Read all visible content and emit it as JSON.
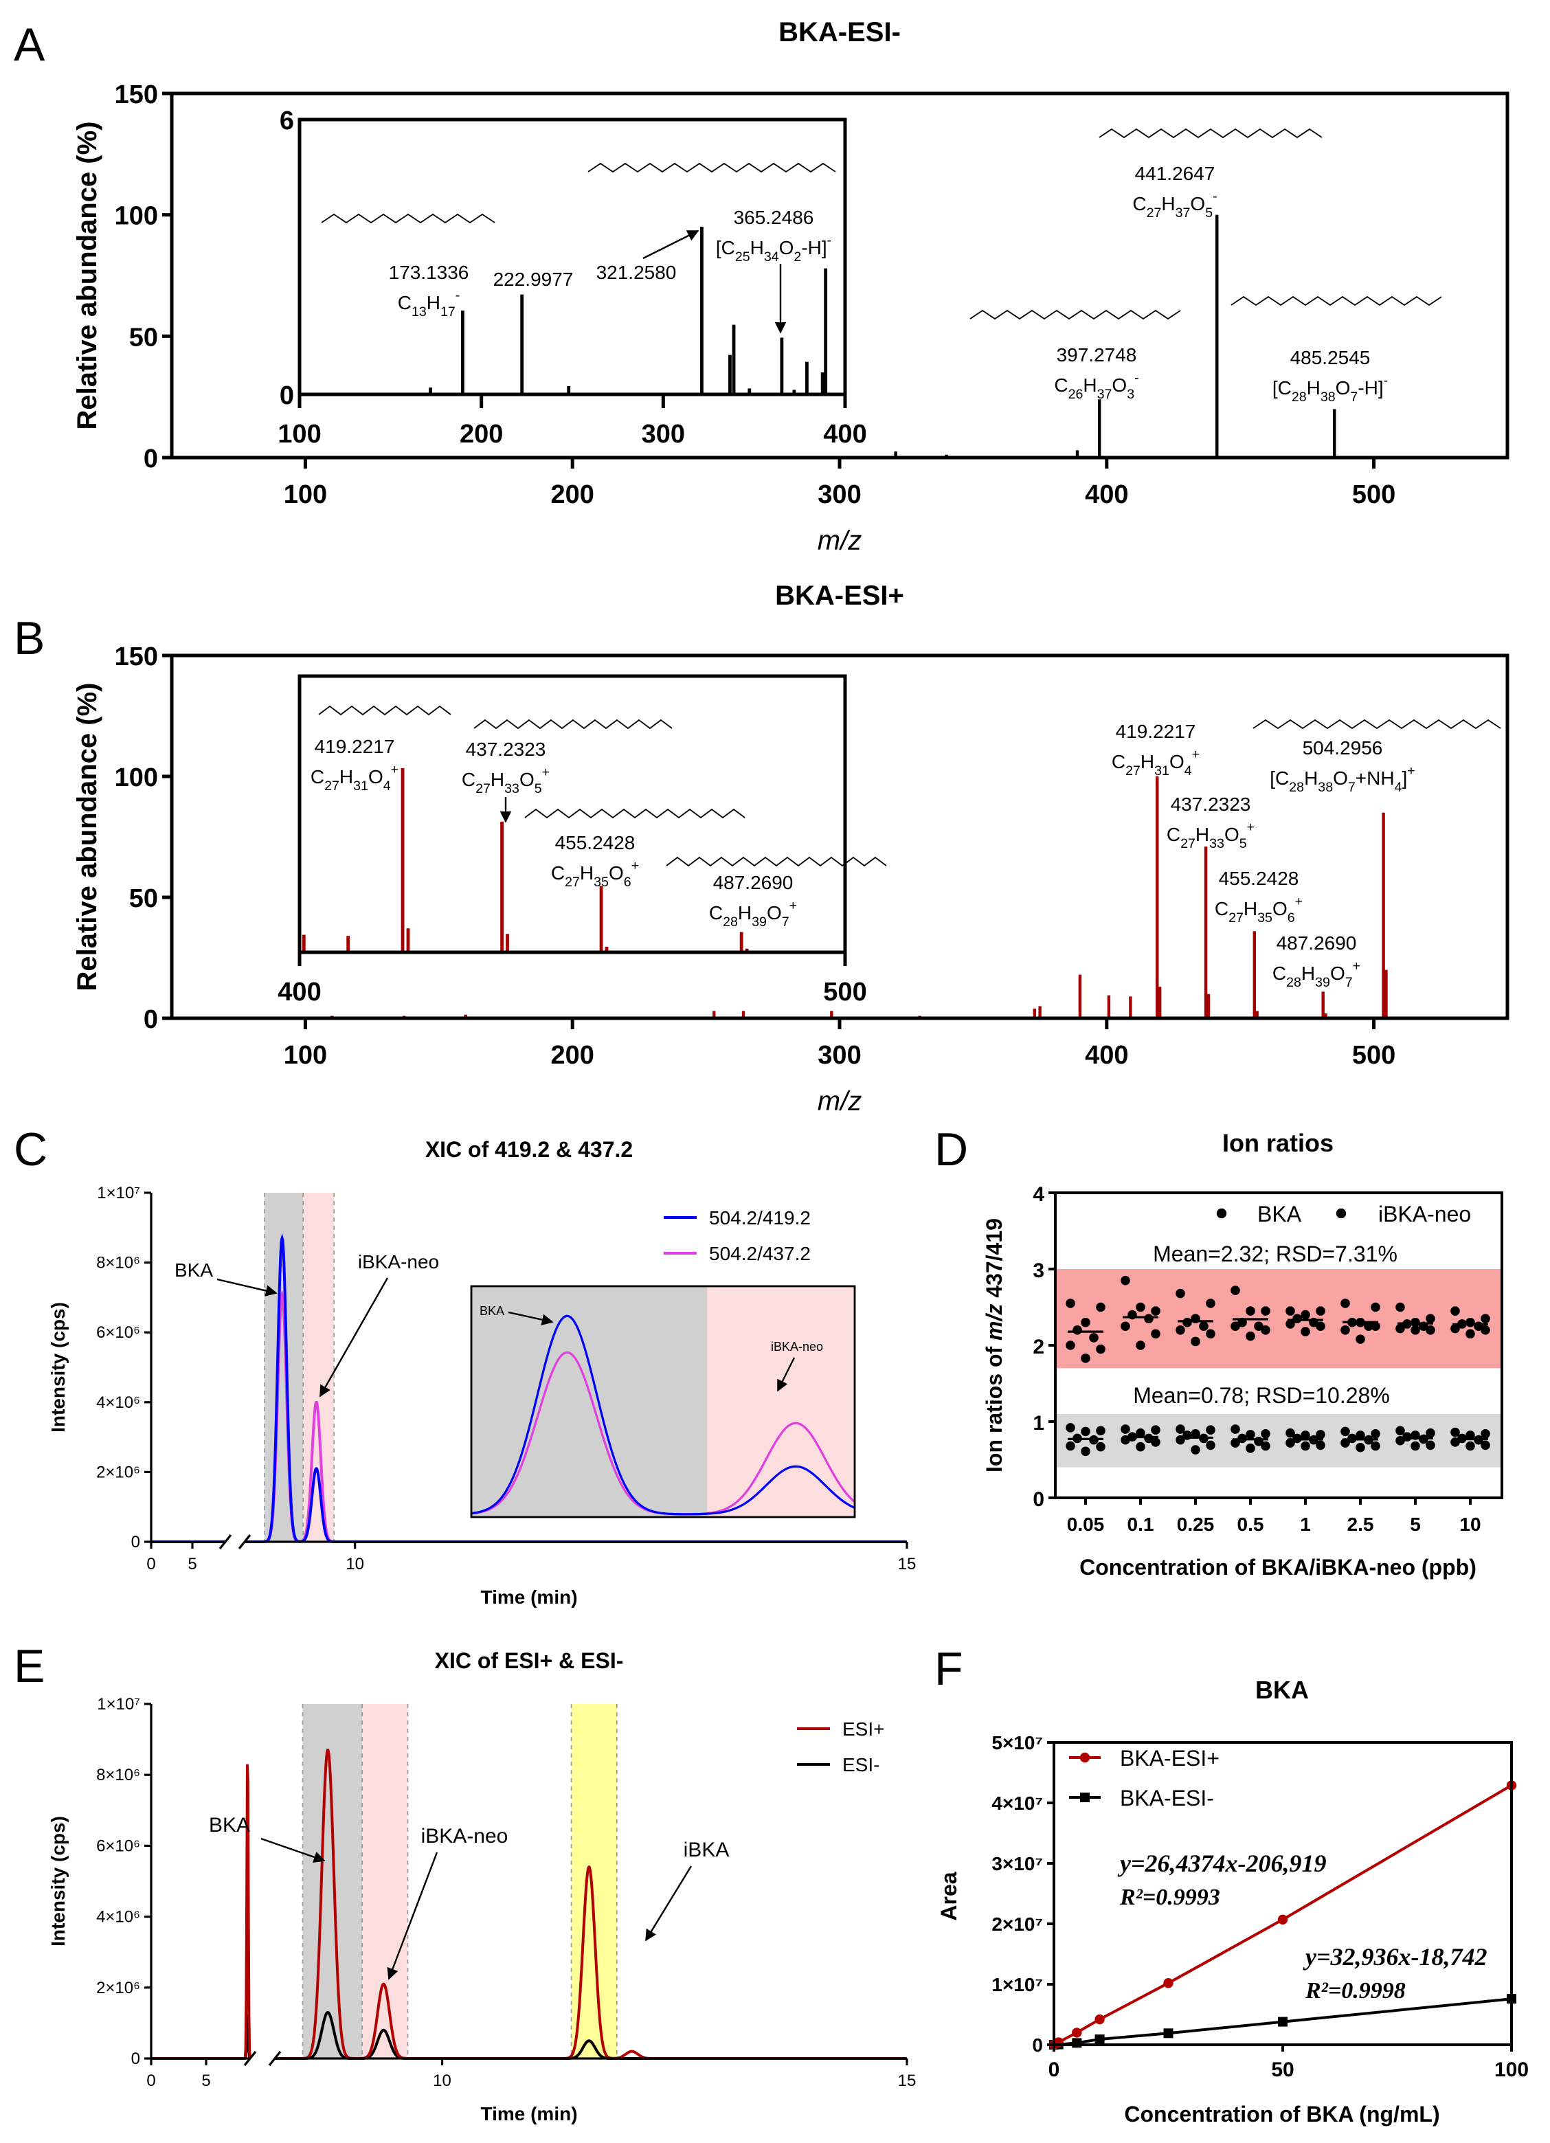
{
  "figure": {
    "panel_labels": [
      "A",
      "B",
      "C",
      "D",
      "E",
      "F"
    ]
  },
  "chart_data": [
    {
      "panel": "A",
      "type": "bar",
      "title": "BKA-ESI-",
      "xlabel": "m/z",
      "ylabel": "Relative abundance (%)",
      "xlim": [
        50,
        550
      ],
      "ylim": [
        0,
        150
      ],
      "xticks": [
        100,
        200,
        300,
        400,
        500
      ],
      "xtick_labels": [
        "100",
        "200",
        "300",
        "400",
        "500"
      ],
      "yticks": [
        0,
        50,
        100,
        150
      ],
      "ytick_labels": [
        "0",
        "50",
        "100",
        "150"
      ],
      "color": "#000000",
      "peaks": [
        [
          100,
          0.4
        ],
        [
          190,
          0.3
        ],
        [
          230,
          0.3
        ],
        [
          321,
          2.5
        ],
        [
          340,
          1.2
        ],
        [
          389,
          3
        ],
        [
          397.27,
          24
        ],
        [
          441.26,
          100
        ],
        [
          485.25,
          20
        ]
      ],
      "annotations": [
        {
          "mz": "441.2647",
          "formula": "C27H37O5-"
        },
        {
          "mz": "397.2748",
          "formula": "C26H37O3-"
        },
        {
          "mz": "485.2545",
          "formula": "[C28H38O7-H]-"
        }
      ],
      "inset": {
        "xlim": [
          100,
          400
        ],
        "ylim": [
          0,
          6
        ],
        "xticks": [
          100,
          200,
          300,
          400
        ],
        "xtick_labels": [
          "100",
          "200",
          "300",
          "400"
        ],
        "yticks": [
          0,
          6
        ],
        "ytick_labels": [
          "0",
          "6"
        ],
        "peaks": [
          [
            172,
            0.15
          ],
          [
            189.7,
            1.83
          ],
          [
            222.3,
            2.18
          ],
          [
            248,
            0.18
          ],
          [
            321.2,
            3.66
          ],
          [
            336.7,
            0.86
          ],
          [
            338.8,
            1.52
          ],
          [
            347.4,
            0.13
          ],
          [
            365.2,
            1.24
          ],
          [
            372,
            0.1
          ],
          [
            379,
            0.71
          ],
          [
            387.6,
            0.48
          ],
          [
            389.3,
            2.75
          ]
        ],
        "annotations": [
          {
            "mz": "173.1336",
            "formula": "C13H17-"
          },
          {
            "mz": "222.9977",
            "formula": ""
          },
          {
            "mz": "321.2580",
            "formula": ""
          },
          {
            "mz": "365.2486",
            "formula": "[C25H34O2-H]-"
          }
        ]
      }
    },
    {
      "panel": "B",
      "type": "bar",
      "title": "BKA-ESI+",
      "xlabel": "m/z",
      "ylabel": "Relative abundance (%)",
      "xlim": [
        50,
        550
      ],
      "ylim": [
        0,
        150
      ],
      "xticks": [
        100,
        200,
        300,
        400,
        500
      ],
      "xtick_labels": [
        "100",
        "200",
        "300",
        "400",
        "500"
      ],
      "yticks": [
        0,
        50,
        100,
        150
      ],
      "ytick_labels": [
        "0",
        "50",
        "100",
        "150"
      ],
      "color": "#a50000",
      "peaks": [
        [
          110,
          1
        ],
        [
          137,
          1
        ],
        [
          160,
          1.5
        ],
        [
          253,
          3
        ],
        [
          264,
          3
        ],
        [
          297,
          3
        ],
        [
          330,
          1
        ],
        [
          373,
          4
        ],
        [
          375,
          5
        ],
        [
          390,
          18
        ],
        [
          400.8,
          9.5
        ],
        [
          408.9,
          9
        ],
        [
          418.9,
          100
        ],
        [
          419.9,
          13
        ],
        [
          437.1,
          71
        ],
        [
          438.1,
          10
        ],
        [
          455.3,
          36
        ],
        [
          456.3,
          3
        ],
        [
          481,
          11
        ],
        [
          482,
          2
        ],
        [
          503.6,
          85
        ],
        [
          504.6,
          20
        ]
      ],
      "annotations": [
        {
          "mz": "419.2217",
          "formula": "C27H31O4+"
        },
        {
          "mz": "437.2323",
          "formula": "C27H33O5+"
        },
        {
          "mz": "455.2428",
          "formula": "C27H35O6+"
        },
        {
          "mz": "487.2690",
          "formula": "C28H39O7+"
        },
        {
          "mz": "504.2956",
          "formula": "[C28H38O7+NH4]+"
        }
      ],
      "inset": {
        "xlim": [
          400,
          500
        ],
        "ylim": [
          0,
          150
        ],
        "xticks": [
          400,
          500
        ],
        "xtick_labels": [
          "400",
          "500"
        ],
        "yticks": [],
        "ytick_labels": [],
        "peaks": [
          [
            400.8,
            9.5
          ],
          [
            401.5,
            0.6
          ],
          [
            408.9,
            8.9
          ],
          [
            418.9,
            100
          ],
          [
            419.9,
            13
          ],
          [
            437.1,
            71
          ],
          [
            438.1,
            10
          ],
          [
            455.3,
            36
          ],
          [
            456.3,
            3
          ],
          [
            481,
            11
          ],
          [
            482,
            2
          ]
        ],
        "annotations": [
          {
            "mz": "419.2217",
            "formula": "C27H31O4+"
          },
          {
            "mz": "437.2323",
            "formula": "C27H33O5+"
          },
          {
            "mz": "455.2428",
            "formula": "C27H35O6+"
          },
          {
            "mz": "487.2690",
            "formula": "C28H39O7+"
          }
        ]
      }
    },
    {
      "panel": "C",
      "type": "line",
      "title": "XIC of 419.2 & 437.2",
      "xlabel": "Time (min)",
      "ylabel": "Intensity (cps)",
      "xlim": [
        0,
        15
      ],
      "ylim": [
        0,
        10000000
      ],
      "xticks": [
        0,
        5,
        10,
        15
      ],
      "xtick_labels": [
        "0",
        "5",
        "10",
        "15"
      ],
      "yticks": [
        0,
        2000000,
        4000000,
        6000000,
        8000000,
        10000000
      ],
      "ytick_labels": [
        "0",
        "2×10⁶",
        "4×10⁶",
        "6×10⁶",
        "8×10⁶",
        "1×10⁷"
      ],
      "peak_width_min": 0.04,
      "series": [
        {
          "name": "504.2/419.2",
          "color": "#0000ff",
          "peaks": [
            [
              9.34,
              8700000
            ],
            [
              9.65,
              2100000
            ]
          ]
        },
        {
          "name": "504.2/437.2",
          "color": "#e040e0",
          "peaks": [
            [
              9.34,
              7100000
            ],
            [
              9.65,
              4000000
            ]
          ]
        }
      ],
      "regions": [
        {
          "t": [
            9.18,
            9.53
          ],
          "color": "#d0d0d0"
        },
        {
          "t": [
            9.53,
            9.81
          ],
          "color": "#fddede"
        }
      ],
      "annotations": [
        "BKA",
        "iBKA-neo"
      ],
      "inset": {
        "xlim": [
          9.21,
          9.73
        ],
        "split": 9.53,
        "annotations": [
          "BKA",
          "iBKA-neo"
        ]
      }
    },
    {
      "panel": "D",
      "type": "scatter",
      "title": "Ion ratios",
      "xlabel": "Concentration of BKA/iBKA-neo (ppb)",
      "ylabel_prefix": "Ion ratios of ",
      "ylabel_italic": "m/z",
      "ylabel_suffix": " 437/419",
      "categories": [
        "0.05",
        "0.1",
        "0.25",
        "0.5",
        "1",
        "2.5",
        "5",
        "10"
      ],
      "ylim": [
        0,
        4
      ],
      "yticks": [
        0,
        1,
        2,
        3,
        4
      ],
      "ytick_labels": [
        "0",
        "1",
        "2",
        "3",
        "4"
      ],
      "series": [
        {
          "name": "BKA",
          "legend_color": "#000000",
          "band": [
            0.4,
            1.1
          ],
          "band_color": "#d9d9d9",
          "summary": "Mean=0.78; RSD=10.28%",
          "values": [
            [
              0.92,
              0.88,
              0.87,
              0.78,
              0.76,
              0.68,
              0.67,
              0.61
            ],
            [
              0.9,
              0.89,
              0.85,
              0.8,
              0.78,
              0.76,
              0.73,
              0.67
            ],
            [
              0.9,
              0.89,
              0.84,
              0.82,
              0.78,
              0.76,
              0.69,
              0.63
            ],
            [
              0.9,
              0.84,
              0.83,
              0.78,
              0.74,
              0.72,
              0.68,
              0.65
            ],
            [
              0.85,
              0.83,
              0.82,
              0.78,
              0.76,
              0.72,
              0.69,
              0.68
            ],
            [
              0.87,
              0.84,
              0.82,
              0.78,
              0.76,
              0.72,
              0.68,
              0.66
            ],
            [
              0.88,
              0.85,
              0.82,
              0.8,
              0.77,
              0.75,
              0.69,
              0.68
            ],
            [
              0.86,
              0.84,
              0.82,
              0.78,
              0.76,
              0.73,
              0.69,
              0.68
            ]
          ]
        },
        {
          "name": "iBKA-neo",
          "legend_color": "#e53935",
          "band": [
            1.7,
            3.0
          ],
          "band_color": "#f9a3a3",
          "summary": "Mean=2.32; RSD=7.31%",
          "values": [
            [
              2.55,
              2.5,
              2.3,
              2.2,
              2.1,
              2.0,
              1.95,
              1.83
            ],
            [
              2.85,
              2.45,
              2.5,
              2.4,
              2.35,
              2.25,
              2.15,
              2.0
            ],
            [
              2.68,
              2.55,
              2.35,
              2.3,
              2.25,
              2.2,
              2.15,
              2.05
            ],
            [
              2.72,
              2.45,
              2.45,
              2.3,
              2.25,
              2.25,
              2.2,
              2.12
            ],
            [
              2.45,
              2.45,
              2.4,
              2.35,
              2.3,
              2.28,
              2.25,
              2.18
            ],
            [
              2.55,
              2.5,
              2.3,
              2.3,
              2.25,
              2.2,
              2.25,
              2.08
            ],
            [
              2.5,
              2.35,
              2.3,
              2.28,
              2.25,
              2.22,
              2.2,
              2.2
            ],
            [
              2.45,
              2.35,
              2.3,
              2.28,
              2.25,
              2.22,
              2.2,
              2.15
            ]
          ]
        }
      ]
    },
    {
      "panel": "E",
      "type": "line",
      "title": "XIC of ESI+ & ESI-",
      "xlabel": "Time (min)",
      "ylabel": "Intensity (cps)",
      "xlim": [
        0,
        15
      ],
      "ylim": [
        0,
        10000000
      ],
      "xticks": [
        0,
        5,
        10,
        15
      ],
      "xtick_labels": [
        "0",
        "5",
        "10",
        "15"
      ],
      "yticks": [
        0,
        2000000,
        4000000,
        6000000,
        8000000,
        10000000
      ],
      "ytick_labels": [
        "0",
        "2×10⁶",
        "4×10⁶",
        "6×10⁶",
        "8×10⁶",
        "1×10⁷"
      ],
      "peak_width_min": 0.065,
      "series": [
        {
          "name": "ESI+",
          "color": "#b30000",
          "peaks": [
            [
              8.77,
              8700000
            ],
            [
              9.37,
              2100000
            ],
            [
              11.58,
              5400000
            ],
            [
              12.04,
              200000
            ]
          ]
        },
        {
          "name": "ESI-",
          "color": "#000000",
          "peaks": [
            [
              8.77,
              1300000
            ],
            [
              9.37,
              800000
            ],
            [
              11.58,
              500000
            ]
          ]
        }
      ],
      "regions": [
        {
          "t": [
            8.5,
            9.14
          ],
          "color": "#d0d0d0"
        },
        {
          "t": [
            9.14,
            9.63
          ],
          "color": "#fddede"
        },
        {
          "t": [
            11.39,
            11.88
          ],
          "color": "#ffff99"
        }
      ],
      "annotations": [
        "BKA",
        "iBKA-neo",
        "iBKA"
      ]
    },
    {
      "panel": "F",
      "type": "line",
      "title": "BKA",
      "xlabel": "Concentration of BKA (ng/mL)",
      "ylabel": "Area",
      "xlim": [
        0,
        100
      ],
      "xticks": [
        0,
        50,
        100
      ],
      "xtick_labels": [
        "0",
        "50",
        "100"
      ],
      "ylim": [
        0,
        50000000
      ],
      "yticks": [
        0,
        10000000,
        20000000,
        30000000,
        40000000,
        50000000
      ],
      "ytick_labels": [
        "0",
        "1×10⁷",
        "2×10⁷",
        "3×10⁷",
        "4×10⁷",
        "5×10⁷"
      ],
      "series": [
        {
          "name": "BKA-ESI+",
          "color": "#b30000",
          "marker": "circle",
          "x": [
            1,
            5,
            10,
            25,
            50,
            100
          ],
          "y": [
            400000,
            2000000,
            4200000,
            10200000,
            20700000,
            42900000
          ],
          "equation": "y=26,4374x-206,919",
          "r2": "R²=0.9993"
        },
        {
          "name": "BKA-ESI-",
          "color": "#000000",
          "marker": "square",
          "x": [
            1,
            5,
            10,
            25,
            50,
            100
          ],
          "y": [
            50000,
            300000,
            900000,
            1900000,
            3800000,
            7600000
          ],
          "equation": "y=32,936x-18,742",
          "r2": "R²=0.9998"
        }
      ]
    }
  ]
}
